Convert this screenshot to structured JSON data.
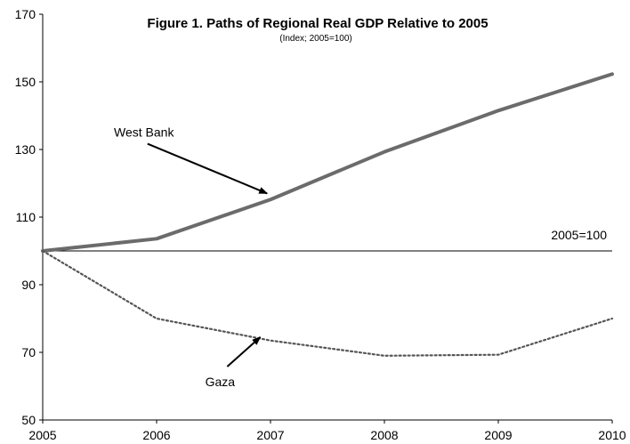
{
  "chart_data": {
    "type": "line",
    "title": "Figure 1. Paths of Regional Real GDP Relative to 2005",
    "subtitle": "(Index; 2005=100)",
    "x": [
      2005,
      2006,
      2007,
      2008,
      2009,
      2010
    ],
    "x_tick_labels": [
      "2005",
      "2006",
      "2007",
      "2008",
      "2009",
      "2010"
    ],
    "y_tick_labels": [
      "50",
      "70",
      "90",
      "110",
      "130",
      "150",
      "170"
    ],
    "ylim": [
      50,
      170
    ],
    "xlim": [
      2005,
      2010
    ],
    "grid": false,
    "series": [
      {
        "name": "West Bank",
        "values": [
          100,
          103.6,
          115.2,
          129.3,
          141.5,
          152.3
        ],
        "color": "#6b6b6b",
        "style": "solid"
      },
      {
        "name": "Gaza",
        "values": [
          100,
          80.0,
          73.5,
          69.0,
          69.3,
          80.0
        ],
        "color": "#555555",
        "style": "dotted"
      }
    ],
    "reference_line": {
      "label": "2005=100",
      "value": 100
    },
    "annotations": [
      {
        "text": "West Bank",
        "arrow_from": [
          2005.92,
          131.7
        ],
        "arrow_to": [
          2006.97,
          117.0
        ]
      },
      {
        "text": "Gaza",
        "arrow_from": [
          2006.62,
          65.8
        ],
        "arrow_to": [
          2006.91,
          74.5
        ]
      }
    ]
  }
}
